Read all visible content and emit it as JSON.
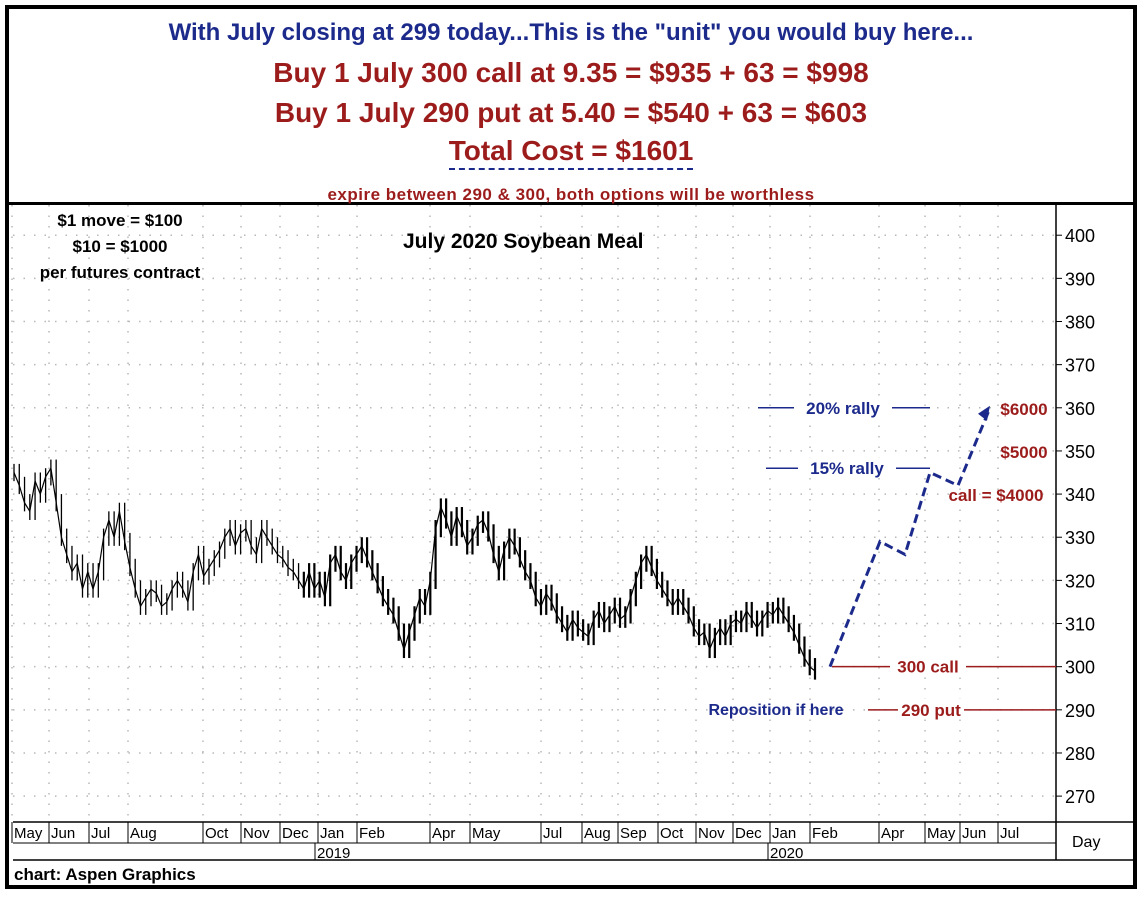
{
  "header": {
    "line1": "With July closing at 299 today...This is the \"unit\" you would buy here...",
    "line2": "Buy 1 July 300 call at 9.35 = $935 + 63 = $998",
    "line3": "Buy 1 July 290 put at 5.40 = $540 + 63 = $603",
    "line4": "Total Cost = $1601",
    "line5": "expire between 290 & 300, both options will be worthless"
  },
  "chart_data": {
    "type": "line",
    "title": "July 2020 Soybean Meal",
    "notes": [
      "$1 move = $100",
      "$10 = $1000",
      "per futures contract"
    ],
    "credit": "chart: Aspen Graphics",
    "x_axis_label": "Day",
    "y_ticks": [
      400,
      390,
      380,
      370,
      360,
      350,
      340,
      330,
      320,
      310,
      300,
      290,
      280,
      270
    ],
    "ylim": [
      264,
      407
    ],
    "month_labels": [
      "May",
      "Jun",
      "Jul",
      "Aug",
      "Oct",
      "Nov",
      "Dec",
      "Jan",
      "Feb",
      "Apr",
      "May",
      "Jul",
      "Aug",
      "Sep",
      "Oct",
      "Nov",
      "Dec",
      "Jan",
      "Feb",
      "Apr",
      "May",
      "Jun",
      "Jul"
    ],
    "year_labels": [
      "2019",
      "2020"
    ],
    "series": [
      {
        "values": [
          345,
          342,
          338,
          336,
          343,
          340,
          344,
          346,
          338,
          330,
          326,
          322,
          324,
          318,
          322,
          318,
          322,
          330,
          334,
          330,
          336,
          329,
          323,
          318,
          314,
          316,
          318,
          317,
          314,
          315,
          318,
          320,
          318,
          315,
          322,
          326,
          321,
          323,
          325,
          327,
          330,
          332,
          328,
          331,
          332,
          328,
          326,
          332,
          330,
          328,
          326,
          325,
          323,
          322,
          320,
          318,
          322,
          318,
          320,
          316,
          324,
          326,
          322,
          320,
          324,
          326,
          328,
          325,
          322,
          319,
          316,
          314,
          312,
          308,
          304,
          308,
          312,
          316,
          314,
          320,
          332,
          337,
          334,
          330,
          335,
          332,
          328,
          330,
          333,
          334,
          331,
          326,
          322,
          327,
          330,
          328,
          325,
          322,
          320,
          316,
          314,
          317,
          315,
          312,
          310,
          308,
          311,
          309,
          308,
          307,
          311,
          313,
          310,
          312,
          314,
          311,
          312,
          316,
          320,
          324,
          326,
          323,
          320,
          318,
          316,
          314,
          316,
          314,
          312,
          309,
          307,
          308,
          304,
          307,
          309,
          307,
          310,
          311,
          310,
          313,
          311,
          309,
          311,
          313,
          312,
          314,
          312,
          310,
          308,
          305,
          302,
          300,
          299
        ]
      }
    ],
    "projection": [
      300,
      329,
      326,
      345,
      342,
      360
    ],
    "levels": [
      {
        "label": "300 call",
        "value": 300
      },
      {
        "label": "290 put",
        "value": 290
      },
      {
        "label": "20% rally",
        "value": 360
      },
      {
        "label": "15% rally",
        "value": 346
      }
    ],
    "value_labels": [
      {
        "label": "$6000",
        "value": 360
      },
      {
        "label": "$5000",
        "value": 350
      },
      {
        "label": "call = $4000",
        "value": 340
      }
    ],
    "annotation": "Reposition if here"
  },
  "colors": {
    "navy": "#1c2a8c",
    "maroon": "#9c1c1c",
    "grid": "#b8b8b8"
  }
}
